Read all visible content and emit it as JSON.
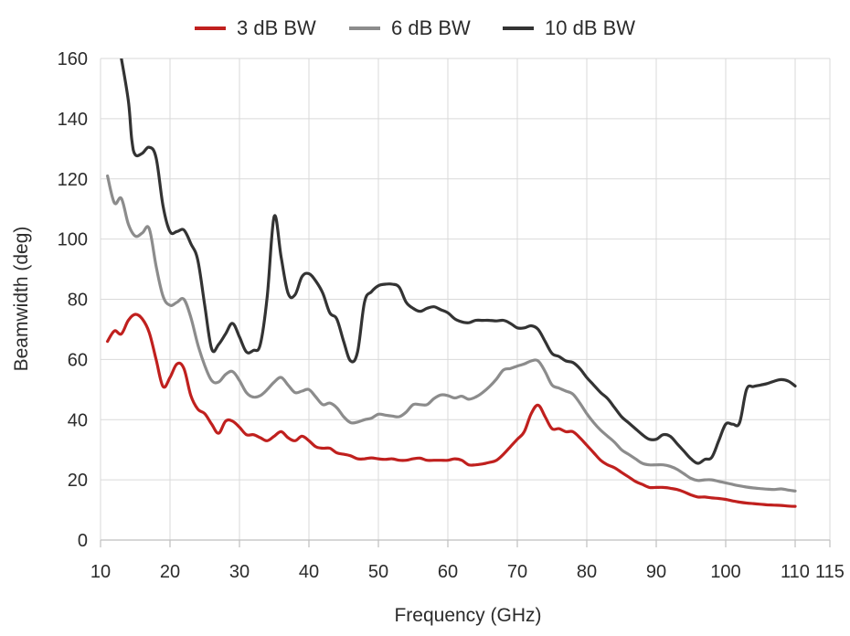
{
  "chart_data": {
    "type": "line",
    "xlabel": "Frequency (GHz)",
    "ylabel": "Beamwidth (deg)",
    "xlim": [
      10,
      115
    ],
    "ylim": [
      0,
      160
    ],
    "xticks": [
      10,
      20,
      30,
      40,
      50,
      60,
      70,
      80,
      90,
      100,
      110,
      115
    ],
    "yticks": [
      0,
      20,
      40,
      60,
      80,
      100,
      120,
      140,
      160
    ],
    "grid": true,
    "legend_position": "top-center",
    "series": [
      {
        "name": "3 dB BW",
        "color": "#c0201e",
        "points": [
          [
            11,
            66
          ],
          [
            12,
            69.5
          ],
          [
            13,
            68.5
          ],
          [
            14,
            73
          ],
          [
            15,
            75
          ],
          [
            16,
            73.5
          ],
          [
            17,
            69
          ],
          [
            18,
            60
          ],
          [
            19,
            51
          ],
          [
            20,
            54
          ],
          [
            21,
            58.5
          ],
          [
            22,
            57
          ],
          [
            23,
            48
          ],
          [
            24,
            43.5
          ],
          [
            25,
            42
          ],
          [
            26,
            38.5
          ],
          [
            27,
            35.5
          ],
          [
            28,
            39.5
          ],
          [
            29,
            39.5
          ],
          [
            30,
            37.5
          ],
          [
            31,
            35
          ],
          [
            32,
            35
          ],
          [
            33,
            34
          ],
          [
            34,
            33
          ],
          [
            35,
            34.5
          ],
          [
            36,
            36
          ],
          [
            37,
            34
          ],
          [
            38,
            33
          ],
          [
            39,
            34.5
          ],
          [
            40,
            33
          ],
          [
            41,
            31
          ],
          [
            42,
            30.5
          ],
          [
            43,
            30.5
          ],
          [
            44,
            29
          ],
          [
            45,
            28.5
          ],
          [
            46,
            28
          ],
          [
            47,
            27
          ],
          [
            48,
            27
          ],
          [
            49,
            27.3
          ],
          [
            50,
            27
          ],
          [
            51,
            26.8
          ],
          [
            52,
            27
          ],
          [
            53,
            26.5
          ],
          [
            54,
            26.5
          ],
          [
            55,
            27
          ],
          [
            56,
            27.2
          ],
          [
            57,
            26.5
          ],
          [
            58,
            26.5
          ],
          [
            59,
            26.5
          ],
          [
            60,
            26.5
          ],
          [
            61,
            27
          ],
          [
            62,
            26.5
          ],
          [
            63,
            25
          ],
          [
            64,
            25
          ],
          [
            65,
            25.3
          ],
          [
            66,
            25.8
          ],
          [
            67,
            26.5
          ],
          [
            68,
            28.5
          ],
          [
            69,
            31
          ],
          [
            70,
            33.5
          ],
          [
            71,
            36
          ],
          [
            72,
            42
          ],
          [
            73,
            44.8
          ],
          [
            74,
            41
          ],
          [
            75,
            37
          ],
          [
            76,
            37
          ],
          [
            77,
            36
          ],
          [
            78,
            36
          ],
          [
            79,
            34
          ],
          [
            80,
            31.5
          ],
          [
            81,
            29
          ],
          [
            82,
            26.5
          ],
          [
            83,
            25
          ],
          [
            84,
            24
          ],
          [
            85,
            22.5
          ],
          [
            86,
            21
          ],
          [
            87,
            19.5
          ],
          [
            88,
            18.5
          ],
          [
            89,
            17.5
          ],
          [
            90,
            17.5
          ],
          [
            91,
            17.5
          ],
          [
            92,
            17.2
          ],
          [
            93,
            16.8
          ],
          [
            94,
            16
          ],
          [
            95,
            15
          ],
          [
            96,
            14.3
          ],
          [
            97,
            14.3
          ],
          [
            98,
            14
          ],
          [
            99,
            13.8
          ],
          [
            100,
            13.5
          ],
          [
            101,
            13
          ],
          [
            102,
            12.6
          ],
          [
            103,
            12.3
          ],
          [
            104,
            12.1
          ],
          [
            105,
            11.9
          ],
          [
            106,
            11.7
          ],
          [
            107,
            11.6
          ],
          [
            108,
            11.5
          ],
          [
            109,
            11.3
          ],
          [
            110,
            11.2
          ]
        ]
      },
      {
        "name": "6 dB BW",
        "color": "#8c8c8c",
        "points": [
          [
            11,
            121
          ],
          [
            12,
            112
          ],
          [
            13,
            113.5
          ],
          [
            14,
            105
          ],
          [
            15,
            101
          ],
          [
            16,
            102
          ],
          [
            17,
            103.5
          ],
          [
            18,
            91
          ],
          [
            19,
            81
          ],
          [
            20,
            78
          ],
          [
            21,
            79
          ],
          [
            22,
            80
          ],
          [
            23,
            74
          ],
          [
            24,
            65
          ],
          [
            25,
            58
          ],
          [
            26,
            53
          ],
          [
            27,
            52.5
          ],
          [
            28,
            55
          ],
          [
            29,
            56
          ],
          [
            30,
            53
          ],
          [
            31,
            49
          ],
          [
            32,
            47.5
          ],
          [
            33,
            48
          ],
          [
            34,
            50
          ],
          [
            35,
            52.5
          ],
          [
            36,
            54
          ],
          [
            37,
            51.5
          ],
          [
            38,
            49
          ],
          [
            39,
            49.5
          ],
          [
            40,
            50
          ],
          [
            41,
            47.5
          ],
          [
            42,
            45
          ],
          [
            43,
            45.5
          ],
          [
            44,
            44
          ],
          [
            45,
            41
          ],
          [
            46,
            39
          ],
          [
            47,
            39.2
          ],
          [
            48,
            40
          ],
          [
            49,
            40.5
          ],
          [
            50,
            41.8
          ],
          [
            51,
            41.5
          ],
          [
            52,
            41.2
          ],
          [
            53,
            41
          ],
          [
            54,
            42.5
          ],
          [
            55,
            45
          ],
          [
            56,
            45
          ],
          [
            57,
            45
          ],
          [
            58,
            47
          ],
          [
            59,
            48.2
          ],
          [
            60,
            48
          ],
          [
            61,
            47.2
          ],
          [
            62,
            47.8
          ],
          [
            63,
            46.8
          ],
          [
            64,
            47.5
          ],
          [
            65,
            49
          ],
          [
            66,
            51
          ],
          [
            67,
            53.5
          ],
          [
            68,
            56.5
          ],
          [
            69,
            57
          ],
          [
            70,
            57.8
          ],
          [
            71,
            58.5
          ],
          [
            72,
            59.5
          ],
          [
            73,
            59.5
          ],
          [
            74,
            56
          ],
          [
            75,
            51.5
          ],
          [
            76,
            50.5
          ],
          [
            77,
            49.5
          ],
          [
            78,
            48.5
          ],
          [
            79,
            45.5
          ],
          [
            80,
            42
          ],
          [
            81,
            39
          ],
          [
            82,
            36.5
          ],
          [
            83,
            34.5
          ],
          [
            84,
            32.5
          ],
          [
            85,
            30
          ],
          [
            86,
            28.5
          ],
          [
            87,
            27
          ],
          [
            88,
            25.5
          ],
          [
            89,
            25
          ],
          [
            90,
            25
          ],
          [
            91,
            25
          ],
          [
            92,
            24.5
          ],
          [
            93,
            23.5
          ],
          [
            94,
            22
          ],
          [
            95,
            20.5
          ],
          [
            96,
            19.8
          ],
          [
            97,
            20
          ],
          [
            98,
            20
          ],
          [
            99,
            19.5
          ],
          [
            100,
            19
          ],
          [
            101,
            18.5
          ],
          [
            102,
            18
          ],
          [
            103,
            17.6
          ],
          [
            104,
            17.3
          ],
          [
            105,
            17.1
          ],
          [
            106,
            16.9
          ],
          [
            107,
            16.8
          ],
          [
            108,
            17
          ],
          [
            109,
            16.6
          ],
          [
            110,
            16.3
          ]
        ]
      },
      {
        "name": "10 dB BW",
        "color": "#333333",
        "points": [
          [
            13,
            160
          ],
          [
            14,
            146
          ],
          [
            14.5,
            133
          ],
          [
            15,
            128
          ],
          [
            16,
            128.5
          ],
          [
            17,
            130.5
          ],
          [
            18,
            127
          ],
          [
            19,
            111
          ],
          [
            20,
            102.5
          ],
          [
            21,
            102.5
          ],
          [
            22,
            103
          ],
          [
            23,
            98.5
          ],
          [
            24,
            93
          ],
          [
            25,
            78
          ],
          [
            26,
            63.5
          ],
          [
            27,
            65
          ],
          [
            28,
            68.5
          ],
          [
            29,
            72
          ],
          [
            30,
            67.5
          ],
          [
            31,
            62.5
          ],
          [
            32,
            63
          ],
          [
            33,
            65
          ],
          [
            34,
            81
          ],
          [
            35,
            107.5
          ],
          [
            36,
            94
          ],
          [
            37,
            82
          ],
          [
            38,
            81.5
          ],
          [
            39,
            87.5
          ],
          [
            40,
            88.5
          ],
          [
            41,
            86
          ],
          [
            42,
            82
          ],
          [
            43,
            75.5
          ],
          [
            44,
            73.5
          ],
          [
            45,
            66
          ],
          [
            46,
            59.5
          ],
          [
            47,
            62.5
          ],
          [
            48,
            79
          ],
          [
            49,
            82.5
          ],
          [
            50,
            84.5
          ],
          [
            51,
            85
          ],
          [
            52,
            85
          ],
          [
            53,
            84
          ],
          [
            54,
            79
          ],
          [
            55,
            77
          ],
          [
            56,
            76
          ],
          [
            57,
            77
          ],
          [
            58,
            77.5
          ],
          [
            59,
            76.5
          ],
          [
            60,
            75.5
          ],
          [
            61,
            73.5
          ],
          [
            62,
            72.5
          ],
          [
            63,
            72.2
          ],
          [
            64,
            73
          ],
          [
            65,
            73
          ],
          [
            66,
            73
          ],
          [
            67,
            72.8
          ],
          [
            68,
            73
          ],
          [
            69,
            72
          ],
          [
            70,
            70.5
          ],
          [
            71,
            70.5
          ],
          [
            72,
            71.2
          ],
          [
            73,
            70
          ],
          [
            74,
            66
          ],
          [
            75,
            62
          ],
          [
            76,
            61
          ],
          [
            77,
            59.5
          ],
          [
            78,
            59
          ],
          [
            79,
            57
          ],
          [
            80,
            54
          ],
          [
            81,
            51.5
          ],
          [
            82,
            49
          ],
          [
            83,
            47
          ],
          [
            84,
            44
          ],
          [
            85,
            41
          ],
          [
            86,
            39
          ],
          [
            87,
            37
          ],
          [
            88,
            35
          ],
          [
            89,
            33.5
          ],
          [
            90,
            33.5
          ],
          [
            91,
            35
          ],
          [
            92,
            34.5
          ],
          [
            93,
            32
          ],
          [
            94,
            29.5
          ],
          [
            95,
            27
          ],
          [
            96,
            25.5
          ],
          [
            97,
            26.8
          ],
          [
            98,
            27.5
          ],
          [
            99,
            33
          ],
          [
            100,
            38.5
          ],
          [
            101,
            38.5
          ],
          [
            102,
            39
          ],
          [
            103,
            50
          ],
          [
            104,
            51
          ],
          [
            105,
            51.5
          ],
          [
            106,
            52
          ],
          [
            107,
            52.8
          ],
          [
            108,
            53.3
          ],
          [
            109,
            52.8
          ],
          [
            110,
            51.2
          ]
        ]
      }
    ]
  }
}
